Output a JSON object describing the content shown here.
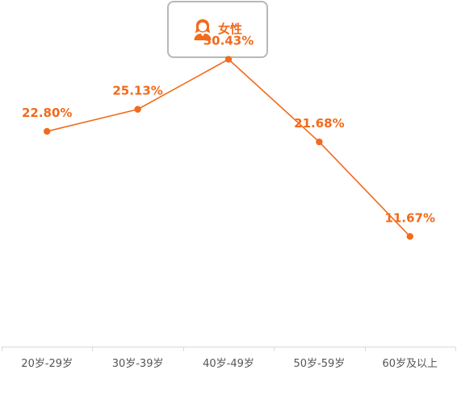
{
  "legend": {
    "label": "女性",
    "icon": "female-user-icon"
  },
  "colors": {
    "series": "#f26a1b",
    "axis": "#d9d9d9",
    "tick_text": "#555555",
    "legend_border": "#b8b8b8"
  },
  "chart_data": {
    "type": "line",
    "title": "",
    "xlabel": "",
    "ylabel": "",
    "categories": [
      "20岁-29岁",
      "30岁-39岁",
      "40岁-49岁",
      "50岁-59岁",
      "60岁及以上"
    ],
    "series": [
      {
        "name": "女性",
        "values": [
          22.8,
          25.13,
          30.43,
          21.68,
          11.67
        ],
        "labels": [
          "22.80%",
          "25.13%",
          "30.43%",
          "21.68%",
          "11.67%"
        ]
      }
    ],
    "unit": "%",
    "ylim": [
      0,
      35
    ],
    "grid": false,
    "legend_position": "top-center"
  }
}
